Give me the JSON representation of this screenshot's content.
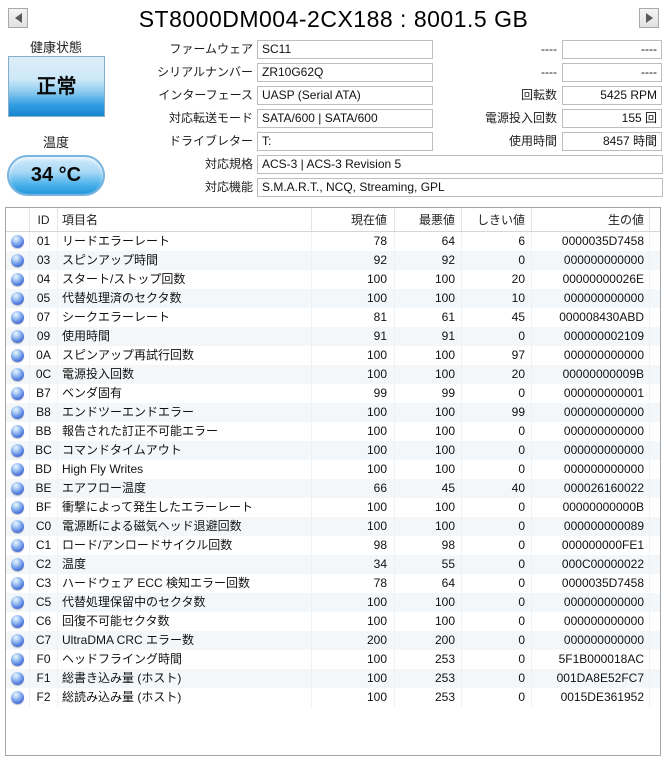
{
  "window": {
    "title": "ST8000DM004-2CX188 : 8001.5 GB",
    "prev_button": "left-arrow",
    "next_button": "right-arrow"
  },
  "health": {
    "label": "健康状態",
    "status": "正常"
  },
  "temperature": {
    "label": "温度",
    "value": "34 °C"
  },
  "info_fields": [
    {
      "label": "ファームウェア",
      "value": "SC11"
    },
    {
      "label": "シリアルナンバー",
      "value": "ZR10G62Q"
    },
    {
      "label": "インターフェース",
      "value": "UASP (Serial ATA)"
    },
    {
      "label": "対応転送モード",
      "value": "SATA/600 | SATA/600"
    },
    {
      "label": "ドライブレター",
      "value": "T:"
    }
  ],
  "wide_fields": [
    {
      "label": "対応規格",
      "value": "ACS-3 | ACS-3 Revision 5"
    },
    {
      "label": "対応機能",
      "value": "S.M.A.R.T., NCQ, Streaming, GPL"
    }
  ],
  "stat_fields": [
    {
      "label": "----",
      "value": "----"
    },
    {
      "label": "----",
      "value": "----"
    },
    {
      "label": "回転数",
      "value": "5425 RPM"
    },
    {
      "label": "電源投入回数",
      "value": "155 回"
    },
    {
      "label": "使用時間",
      "value": "8457 時間"
    }
  ],
  "smart_table": {
    "columns": [
      "ID",
      "項目名",
      "現在値",
      "最悪値",
      "しきい値",
      "生の値"
    ],
    "status_icon": "blue-orb",
    "rows": [
      {
        "id": "01",
        "name": "リードエラーレート",
        "current": "78",
        "worst": "64",
        "threshold": "6",
        "raw": "0000035D7458"
      },
      {
        "id": "03",
        "name": "スピンアップ時間",
        "current": "92",
        "worst": "92",
        "threshold": "0",
        "raw": "000000000000"
      },
      {
        "id": "04",
        "name": "スタート/ストップ回数",
        "current": "100",
        "worst": "100",
        "threshold": "20",
        "raw": "00000000026E"
      },
      {
        "id": "05",
        "name": "代替処理済のセクタ数",
        "current": "100",
        "worst": "100",
        "threshold": "10",
        "raw": "000000000000"
      },
      {
        "id": "07",
        "name": "シークエラーレート",
        "current": "81",
        "worst": "61",
        "threshold": "45",
        "raw": "000008430ABD"
      },
      {
        "id": "09",
        "name": "使用時間",
        "current": "91",
        "worst": "91",
        "threshold": "0",
        "raw": "000000002109"
      },
      {
        "id": "0A",
        "name": "スピンアップ再試行回数",
        "current": "100",
        "worst": "100",
        "threshold": "97",
        "raw": "000000000000"
      },
      {
        "id": "0C",
        "name": "電源投入回数",
        "current": "100",
        "worst": "100",
        "threshold": "20",
        "raw": "00000000009B"
      },
      {
        "id": "B7",
        "name": "ベンダ固有",
        "current": "99",
        "worst": "99",
        "threshold": "0",
        "raw": "000000000001"
      },
      {
        "id": "B8",
        "name": "エンドツーエンドエラー",
        "current": "100",
        "worst": "100",
        "threshold": "99",
        "raw": "000000000000"
      },
      {
        "id": "BB",
        "name": "報告された訂正不可能エラー",
        "current": "100",
        "worst": "100",
        "threshold": "0",
        "raw": "000000000000"
      },
      {
        "id": "BC",
        "name": "コマンドタイムアウト",
        "current": "100",
        "worst": "100",
        "threshold": "0",
        "raw": "000000000000"
      },
      {
        "id": "BD",
        "name": "High Fly Writes",
        "current": "100",
        "worst": "100",
        "threshold": "0",
        "raw": "000000000000"
      },
      {
        "id": "BE",
        "name": "エアフロー温度",
        "current": "66",
        "worst": "45",
        "threshold": "40",
        "raw": "000026160022"
      },
      {
        "id": "BF",
        "name": "衝撃によって発生したエラーレート",
        "current": "100",
        "worst": "100",
        "threshold": "0",
        "raw": "00000000000B"
      },
      {
        "id": "C0",
        "name": "電源断による磁気ヘッド退避回数",
        "current": "100",
        "worst": "100",
        "threshold": "0",
        "raw": "000000000089"
      },
      {
        "id": "C1",
        "name": "ロード/アンロードサイクル回数",
        "current": "98",
        "worst": "98",
        "threshold": "0",
        "raw": "000000000FE1"
      },
      {
        "id": "C2",
        "name": "温度",
        "current": "34",
        "worst": "55",
        "threshold": "0",
        "raw": "000C00000022"
      },
      {
        "id": "C3",
        "name": "ハードウェア ECC 検知エラー回数",
        "current": "78",
        "worst": "64",
        "threshold": "0",
        "raw": "0000035D7458"
      },
      {
        "id": "C5",
        "name": "代替処理保留中のセクタ数",
        "current": "100",
        "worst": "100",
        "threshold": "0",
        "raw": "000000000000"
      },
      {
        "id": "C6",
        "name": "回復不可能セクタ数",
        "current": "100",
        "worst": "100",
        "threshold": "0",
        "raw": "000000000000"
      },
      {
        "id": "C7",
        "name": "UltraDMA CRC エラー数",
        "current": "200",
        "worst": "200",
        "threshold": "0",
        "raw": "000000000000"
      },
      {
        "id": "F0",
        "name": "ヘッドフライング時間",
        "current": "100",
        "worst": "253",
        "threshold": "0",
        "raw": "5F1B000018AC"
      },
      {
        "id": "F1",
        "name": "総書き込み量 (ホスト)",
        "current": "100",
        "worst": "253",
        "threshold": "0",
        "raw": "001DA8E52FC7"
      },
      {
        "id": "F2",
        "name": "総読み込み量 (ホスト)",
        "current": "100",
        "worst": "253",
        "threshold": "0",
        "raw": "0015DE361952"
      }
    ]
  },
  "colors": {
    "health_good_blue": "#1787cf",
    "temp_blue": "#2397dc",
    "status_orb_blue": "#3a55bd"
  }
}
